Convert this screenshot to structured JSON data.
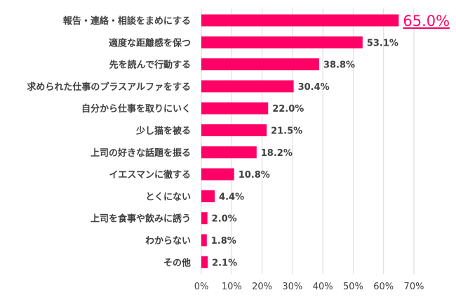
{
  "chart_data": {
    "type": "bar",
    "orientation": "horizontal",
    "categories": [
      "報告・連絡・相談をまめにする",
      "適度な距離感を保つ",
      "先を読んで行動する",
      "求められた仕事のプラスアルファをする",
      "自分から仕事を取りにいく",
      "少し猫を被る",
      "上司の好きな話題を振る",
      "イエスマンに徹する",
      "とくにない",
      "上司を食事や飲みに誘う",
      "わからない",
      "その他"
    ],
    "values": [
      65.0,
      53.1,
      38.8,
      30.4,
      22.0,
      21.5,
      18.2,
      10.8,
      4.4,
      2.0,
      1.8,
      2.1
    ],
    "data_labels": [
      "65.0%",
      "53.1%",
      "38.8%",
      "30.4%",
      "22.0%",
      "21.5%",
      "18.2%",
      "10.8%",
      "4.4%",
      "2.0%",
      "1.8%",
      "2.1%"
    ],
    "highlight_index": 0,
    "xlim": [
      0,
      70
    ],
    "x_ticks": [
      "0%",
      "10%",
      "20%",
      "30%",
      "40%",
      "50%",
      "60%",
      "70%"
    ],
    "grid": "vertical",
    "bar_color": "#FF0066",
    "highlight_label_color": "#FF0066",
    "text_color": "#404040",
    "grid_color": "#D9D9D9"
  }
}
